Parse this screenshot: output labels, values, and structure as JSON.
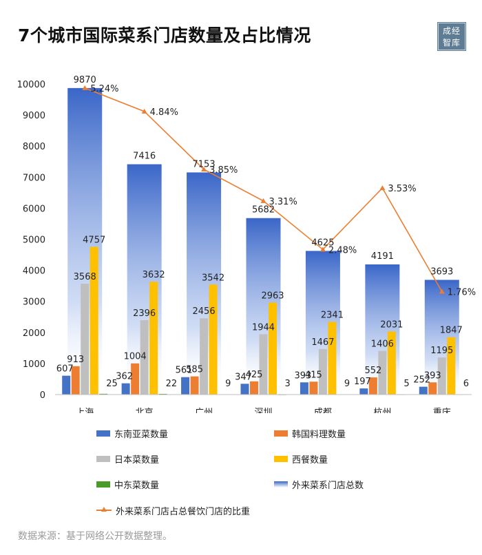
{
  "title": "7个城市国际菜系门店数量及占比情况",
  "logo": {
    "line1": "成经",
    "line2": "智库"
  },
  "source": "数据来源：基于网络公开数据整理。",
  "colors": {
    "southeast_asian": "#4472c4",
    "korean": "#ed7d31",
    "japanese": "#bfbfbf",
    "western": "#ffc000",
    "middle_eastern": "#4c9a2a",
    "total": "#3a66c8",
    "ratio": "#ed7d31"
  },
  "chart_data": {
    "type": "bar",
    "categories": [
      "上海",
      "北京",
      "广州",
      "深圳",
      "成都",
      "杭州",
      "重庆"
    ],
    "ylim": [
      0,
      10000
    ],
    "yticks": [
      "0",
      "1000",
      "2000",
      "3000",
      "4000",
      "5000",
      "6000",
      "7000",
      "8000",
      "9000",
      "10000"
    ],
    "series": [
      {
        "name": "东南亚菜数量",
        "values": [
          607,
          362,
          561,
          347,
          393,
          197,
          252
        ]
      },
      {
        "name": "韩国料理数量",
        "values": [
          913,
          1004,
          585,
          425,
          415,
          552,
          393
        ]
      },
      {
        "name": "日本菜数量",
        "values": [
          3568,
          2396,
          2456,
          1944,
          1467,
          1406,
          1195
        ]
      },
      {
        "name": "西餐数量",
        "values": [
          4757,
          3632,
          3542,
          2963,
          2341,
          2031,
          1847
        ]
      },
      {
        "name": "中东菜数量",
        "values": [
          25,
          22,
          9,
          3,
          9,
          5,
          6
        ]
      }
    ],
    "totals": {
      "name": "外来菜系门店总数",
      "values": [
        9870,
        7416,
        7153,
        5682,
        4625,
        4191,
        3693
      ]
    },
    "ratio": {
      "name": "外来菜系门店占总餐饮门店的比重",
      "values": [
        5.24,
        4.84,
        3.85,
        3.31,
        2.48,
        3.53,
        1.76
      ],
      "labels": [
        "5.24%",
        "4.84%",
        "3.85%",
        "3.31%",
        "2.48%",
        "3.53%",
        "1.76%"
      ]
    }
  }
}
